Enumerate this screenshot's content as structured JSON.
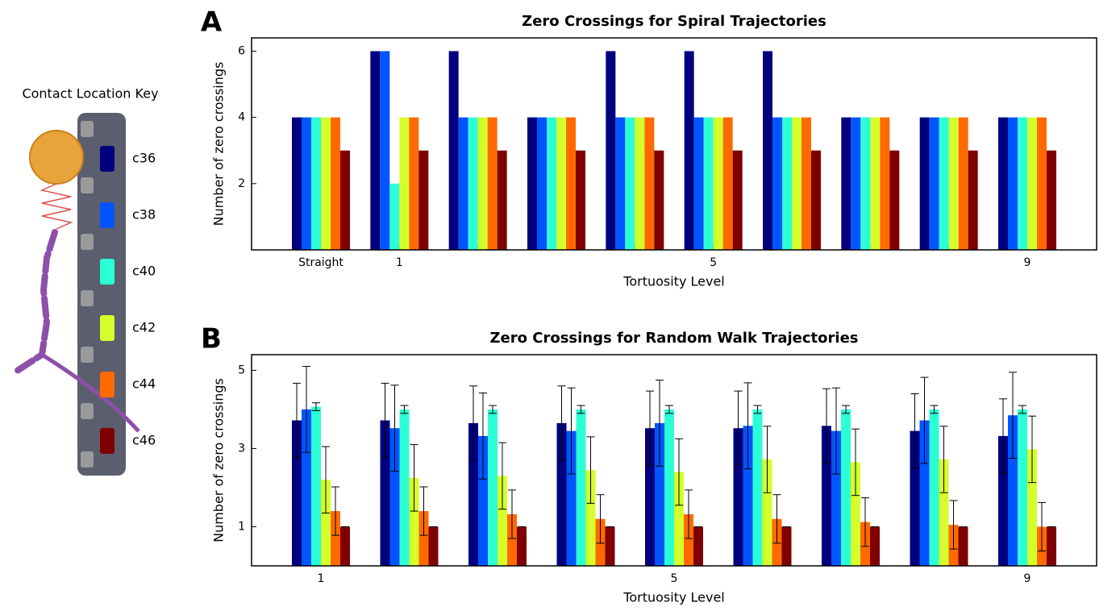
{
  "contact_key": {
    "title": "Contact Location Key",
    "contacts": [
      "c36",
      "c38",
      "c40",
      "c42",
      "c44",
      "c46"
    ]
  },
  "chart_data": [
    {
      "type": "bar",
      "panel_label": "A",
      "title": "Zero Crossings for Spiral Trajectories",
      "xlabel": "Tortuosity Level",
      "ylabel": "Number of zero crossings",
      "categories": [
        "Straight",
        "1",
        null,
        null,
        null,
        "5",
        null,
        null,
        null,
        "9"
      ],
      "ylim": [
        0,
        6.4
      ],
      "yticks": [
        2,
        4,
        6
      ],
      "series": [
        {
          "color": "#00007f",
          "values": [
            4,
            6,
            6,
            4,
            6,
            6,
            6,
            4,
            4,
            4
          ]
        },
        {
          "color": "#0055ff",
          "values": [
            4,
            6,
            4,
            4,
            4,
            4,
            4,
            4,
            4,
            4
          ]
        },
        {
          "color": "#2bffd5",
          "values": [
            4,
            2,
            4,
            4,
            4,
            4,
            4,
            4,
            4,
            4
          ]
        },
        {
          "color": "#d4ff2b",
          "values": [
            4,
            4,
            4,
            4,
            4,
            4,
            4,
            4,
            4,
            4
          ]
        },
        {
          "color": "#ff6a00",
          "values": [
            4,
            4,
            4,
            4,
            4,
            4,
            4,
            4,
            4,
            4
          ]
        },
        {
          "color": "#7f0000",
          "values": [
            3,
            3,
            3,
            3,
            3,
            3,
            3,
            3,
            3,
            3
          ]
        }
      ]
    },
    {
      "type": "bar",
      "panel_label": "B",
      "title": "Zero Crossings for Random Walk Trajectories",
      "xlabel": "Tortuosity Level",
      "ylabel": "Number of zero crossings",
      "categories": [
        "1",
        null,
        null,
        null,
        "5",
        null,
        null,
        null,
        "9"
      ],
      "ylim": [
        0,
        5.4
      ],
      "yticks": [
        1,
        3,
        5
      ],
      "series": [
        {
          "color": "#00007f",
          "values": [
            3.72,
            3.72,
            3.65,
            3.65,
            3.52,
            3.52,
            3.58,
            3.45,
            3.32
          ],
          "errors": [
            0.95,
            0.95,
            0.95,
            0.95,
            0.95,
            0.95,
            0.95,
            0.95,
            0.95
          ]
        },
        {
          "color": "#0055ff",
          "values": [
            4.0,
            3.52,
            3.32,
            3.45,
            3.65,
            3.58,
            3.45,
            3.72,
            3.85
          ],
          "errors": [
            1.1,
            1.1,
            1.1,
            1.1,
            1.1,
            1.1,
            1.1,
            1.1,
            1.1
          ]
        },
        {
          "color": "#2bffd5",
          "values": [
            4.07,
            4.0,
            4.0,
            4.0,
            4.0,
            4.0,
            4.0,
            4.0,
            4.0
          ],
          "errors": [
            0.1,
            0.1,
            0.1,
            0.1,
            0.1,
            0.1,
            0.1,
            0.1,
            0.1
          ]
        },
        {
          "color": "#d4ff2b",
          "values": [
            2.2,
            2.25,
            2.3,
            2.45,
            2.4,
            2.72,
            2.65,
            2.72,
            2.98
          ],
          "errors": [
            0.85,
            0.85,
            0.85,
            0.85,
            0.85,
            0.85,
            0.85,
            0.85,
            0.85
          ]
        },
        {
          "color": "#ff6a00",
          "values": [
            1.4,
            1.4,
            1.32,
            1.2,
            1.32,
            1.2,
            1.12,
            1.05,
            1.0
          ],
          "errors": [
            0.62,
            0.62,
            0.62,
            0.62,
            0.62,
            0.62,
            0.62,
            0.62,
            0.62
          ]
        },
        {
          "color": "#7f0000",
          "values": [
            1,
            1,
            1,
            1,
            1,
            1,
            1,
            1,
            1
          ],
          "errors": [
            0,
            0,
            0,
            0,
            0,
            0,
            0,
            0,
            0
          ]
        }
      ]
    }
  ]
}
